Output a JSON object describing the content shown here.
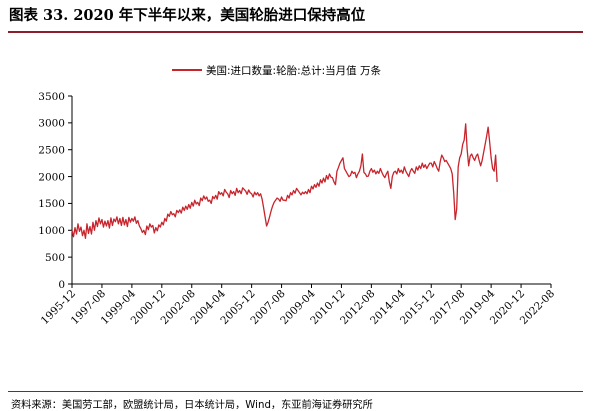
{
  "header": {
    "title": "图表 33. 2020 年下半年以来，美国轮胎进口保持高位"
  },
  "footer": {
    "source": "资料来源：美国劳工部，欧盟统计局，日本统计局，Wind，东亚前海证券研究所"
  },
  "colors": {
    "series": "#c8242c",
    "rule": "#8b1f2c",
    "axis": "#000000"
  },
  "chart_data": {
    "type": "line",
    "title": "",
    "xlabel": "",
    "ylabel": "",
    "ylim": [
      0,
      3500
    ],
    "yticks": [
      0,
      500,
      1000,
      1500,
      2000,
      2500,
      3000,
      3500
    ],
    "xlim": [
      "1995-12",
      "2022-08"
    ],
    "xticks": [
      "1995-12",
      "1997-08",
      "1999-04",
      "2000-12",
      "2002-08",
      "2004-04",
      "2005-12",
      "2007-08",
      "2009-04",
      "2010-12",
      "2012-08",
      "2014-04",
      "2015-12",
      "2017-08",
      "2019-04",
      "2020-12",
      "2022-08"
    ],
    "grid": false,
    "legend": "top-center",
    "series": [
      {
        "name": "美国:进口数量:轮胎:总计:当月值  万条",
        "frequency": "monthly",
        "start": "1995-12",
        "values": [
          1000,
          880,
          1050,
          930,
          1120,
          980,
          1060,
          900,
          1000,
          850,
          1120,
          940,
          1070,
          930,
          1150,
          1000,
          1180,
          1070,
          1230,
          1120,
          1200,
          1060,
          1170,
          1080,
          1180,
          1040,
          1230,
          1090,
          1210,
          1160,
          1250,
          1120,
          1220,
          1090,
          1240,
          1100,
          1200,
          1070,
          1240,
          1150,
          1220,
          1170,
          1250,
          1130,
          1180,
          1080,
          1030,
          960,
          1000,
          920,
          1080,
          1010,
          1120,
          1060,
          1090,
          950,
          1050,
          990,
          1100,
          1060,
          1150,
          1100,
          1220,
          1170,
          1300,
          1260,
          1350,
          1290,
          1310,
          1250,
          1370,
          1330,
          1380,
          1320,
          1430,
          1370,
          1450,
          1390,
          1480,
          1410,
          1520,
          1450,
          1560,
          1490,
          1520,
          1460,
          1600,
          1550,
          1640,
          1580,
          1620,
          1540,
          1560,
          1500,
          1630,
          1590,
          1650,
          1580,
          1720,
          1670,
          1700,
          1640,
          1760,
          1710,
          1680,
          1610,
          1740,
          1680,
          1720,
          1650,
          1780,
          1700,
          1740,
          1680,
          1790,
          1760,
          1730,
          1670,
          1750,
          1700,
          1680,
          1620,
          1710,
          1660,
          1700,
          1640,
          1680,
          1580,
          1420,
          1250,
          1080,
          1150,
          1250,
          1360,
          1450,
          1520,
          1560,
          1600,
          1580,
          1540,
          1620,
          1560,
          1560,
          1550,
          1650,
          1600,
          1700,
          1660,
          1740,
          1690,
          1780,
          1740,
          1700,
          1660,
          1710,
          1680,
          1720,
          1680,
          1760,
          1700,
          1820,
          1770,
          1850,
          1800,
          1880,
          1820,
          1940,
          1880,
          1970,
          1900,
          2020,
          1950,
          2050,
          1990,
          1980,
          1900,
          1850,
          2100,
          2170,
          2250,
          2300,
          2350,
          2150,
          2100,
          2050,
          2000,
          2020,
          2100,
          2060,
          2080,
          1980,
          2050,
          2100,
          2200,
          2420,
          2080,
          2050,
          2000,
          2010,
          2100,
          2150,
          2080,
          2120,
          2050,
          2100,
          2060,
          2150,
          2080,
          2020,
          1980,
          2050,
          2100,
          1900,
          1780,
          2000,
          2080,
          2100,
          2050,
          2150,
          2080,
          2120,
          2060,
          2180,
          2100,
          2050,
          2000,
          2100,
          2150,
          2100,
          2060,
          2180,
          2120,
          2200,
          2150,
          2250,
          2170,
          2220,
          2150,
          2200,
          2250,
          2250,
          2180,
          2280,
          2220,
          2150,
          2100,
          2280,
          2400,
          2350,
          2280,
          2300,
          2250,
          2200,
          2150,
          2050,
          1700,
          1200,
          1400,
          2180,
          2350,
          2420,
          2600,
          2680,
          2980,
          2500,
          2200,
          2380,
          2420,
          2350,
          2300,
          2380,
          2420,
          2300,
          2200,
          2300,
          2450,
          2600,
          2750,
          2920,
          2650,
          2350,
          2150,
          2100,
          2400,
          1900
        ]
      }
    ]
  }
}
